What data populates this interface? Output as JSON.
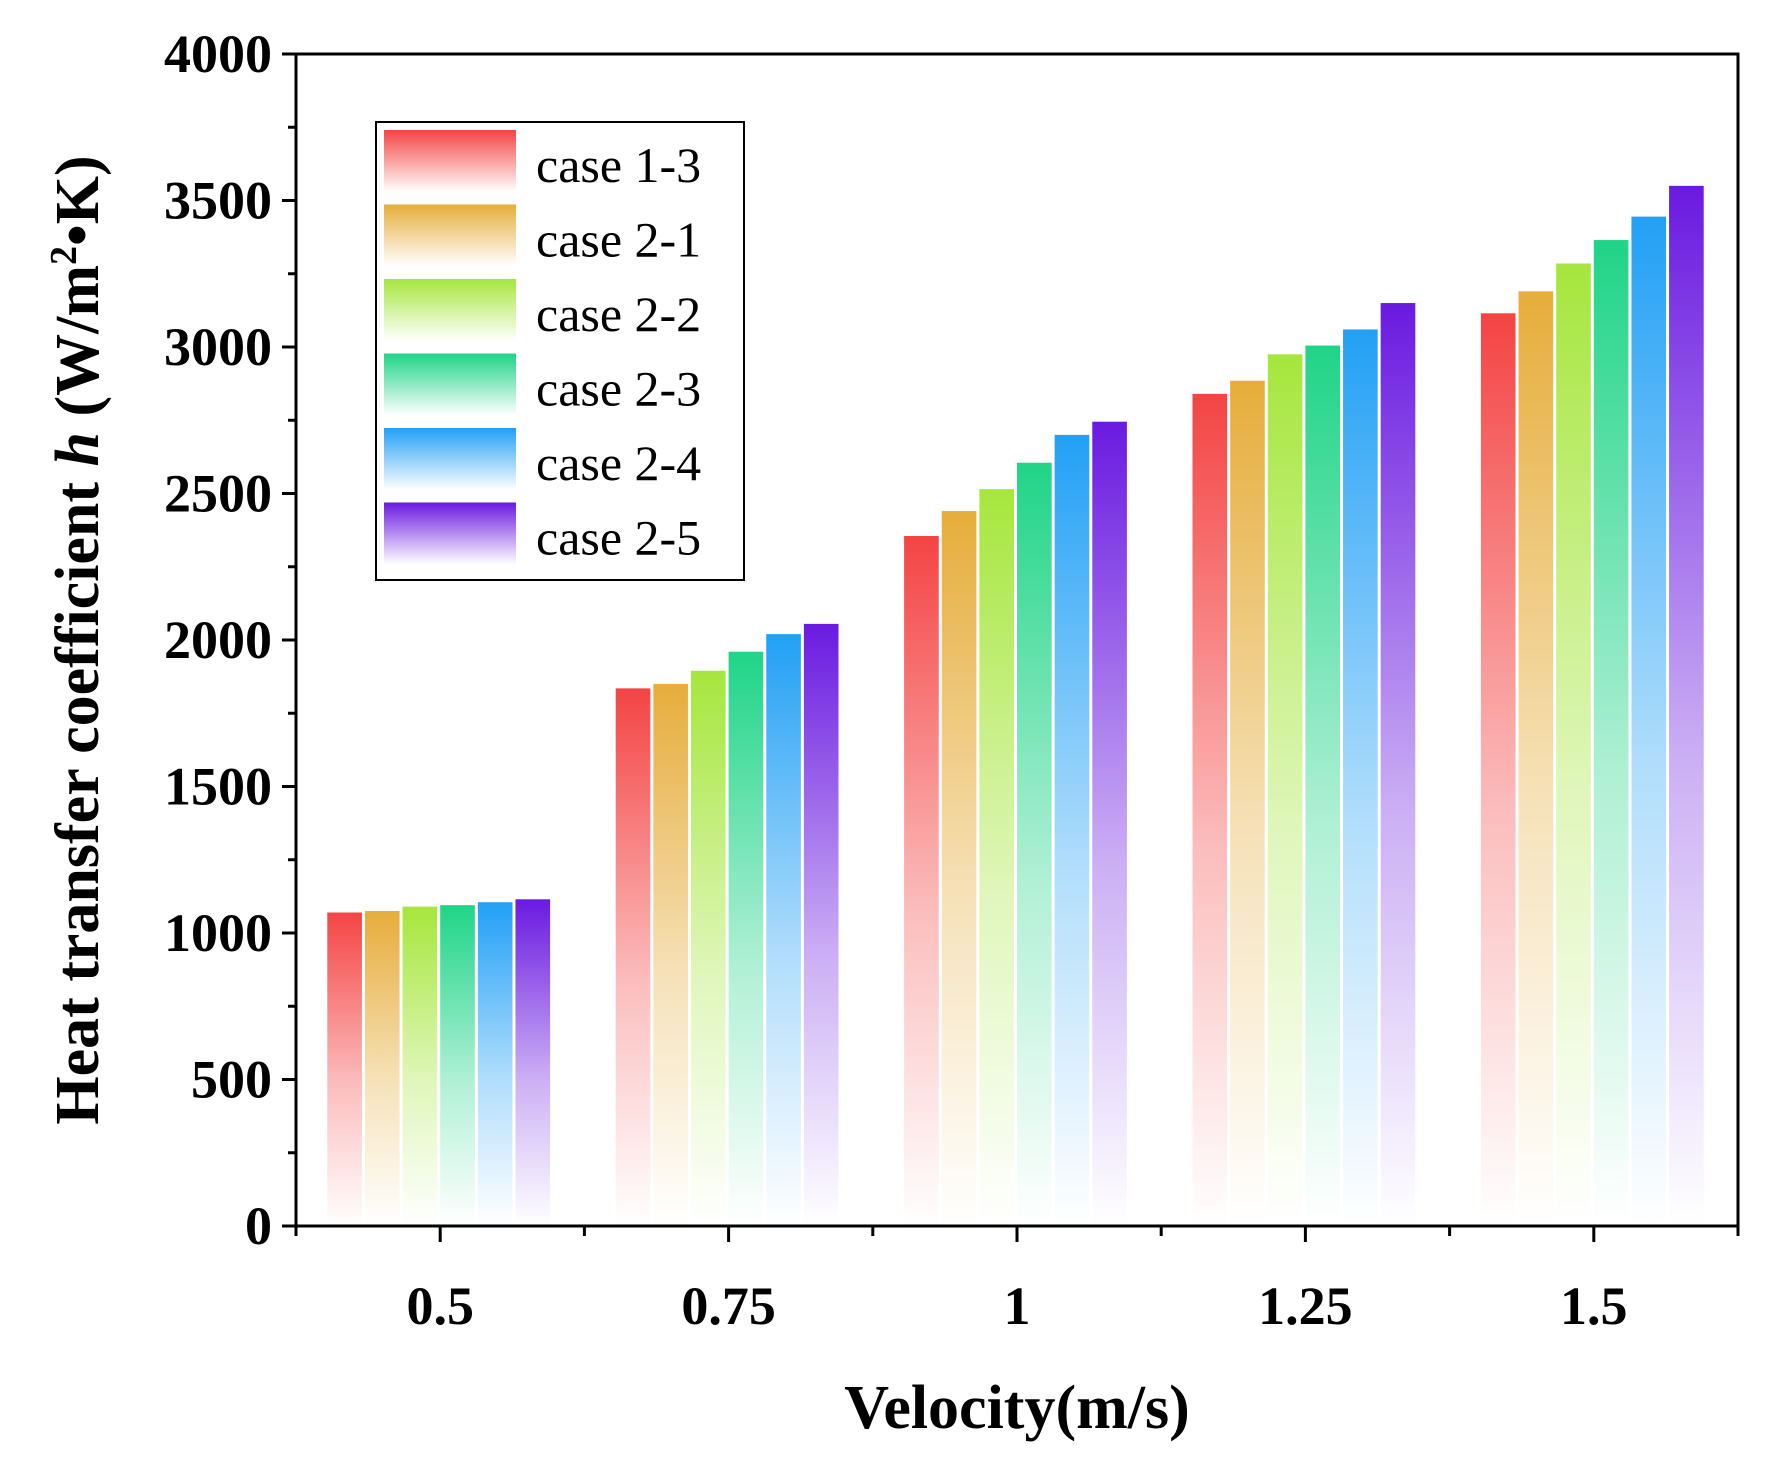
{
  "chart_data": {
    "type": "bar",
    "title": "",
    "xlabel": "Velocity(m/s)",
    "ylabel": {
      "prefix": "Heat transfer coefficient ",
      "symbol": "h",
      "unit_open": " (W/m",
      "unit_exp": "2",
      "unit_close": "•K)"
    },
    "categories": [
      "0.5",
      "0.75",
      "1",
      "1.25",
      "1.5"
    ],
    "ylim": [
      0,
      4000
    ],
    "yticks": [
      0,
      500,
      1000,
      1500,
      2000,
      2500,
      3000,
      3500,
      4000
    ],
    "grid": false,
    "legend_position": "top-left",
    "series": [
      {
        "name": "case 1-3",
        "color": "#f44444",
        "values": [
          1070,
          1835,
          2355,
          2840,
          3115
        ]
      },
      {
        "name": "case 2-1",
        "color": "#e6ad3b",
        "values": [
          1075,
          1850,
          2440,
          2885,
          3190
        ]
      },
      {
        "name": "case 2-2",
        "color": "#a6e63d",
        "values": [
          1090,
          1895,
          2515,
          2975,
          3285
        ]
      },
      {
        "name": "case 2-3",
        "color": "#1fd487",
        "values": [
          1095,
          1960,
          2605,
          3005,
          3365
        ]
      },
      {
        "name": "case 2-4",
        "color": "#22a0f5",
        "values": [
          1105,
          2020,
          2700,
          3060,
          3445
        ]
      },
      {
        "name": "case 2-5",
        "color": "#6a1ae0",
        "values": [
          1115,
          2055,
          2745,
          3150,
          3550
        ]
      }
    ]
  }
}
